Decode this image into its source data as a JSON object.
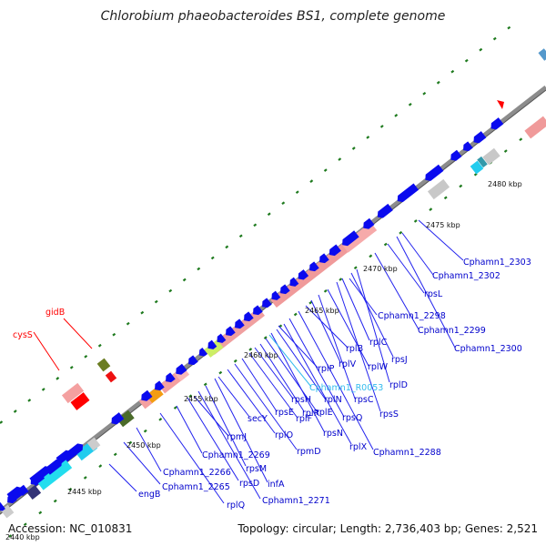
{
  "title": "Chlorobium phaeobacteroides BS1, complete genome",
  "accession": "Accession: NC_010831",
  "topology": "Topology: circular; Length: 2,736,403 bp; Genes: 2,521",
  "colors": {
    "forward": "#0000e6",
    "reverse": "#0000e6",
    "rRNA": "#f09a9a",
    "tRNA": "#1cc9e6",
    "label_blue": "#0000cc",
    "label_red": "#ff0000",
    "label_cyan": "#33bbee",
    "backbone": "#7f7f7f",
    "gc_marks": "#1a7a1a"
  },
  "ticks": [
    "2440 kbp",
    "2445 kbp",
    "2450 kbp",
    "2455 kbp",
    "2460 kbp",
    "2465 kbp",
    "2470 kbp",
    "2475 kbp",
    "2480 kbp"
  ],
  "gene_labels": {
    "cysS": "cysS",
    "gidB": "gidB",
    "engB": "engB",
    "c2265": "Cphamn1_2265",
    "rplQ": "rplQ",
    "c2266": "Cphamn1_2266",
    "rpsD": "rpsD",
    "c2271": "Cphamn1_2271",
    "c2269": "Cphamn1_2269",
    "rpsM": "rpsM",
    "infA": "infA",
    "rpmJ": "rpmJ",
    "secY": "secY",
    "rplO": "rplO",
    "rpmD": "rpmD",
    "rpsE": "rpsE",
    "rplF": "rplF",
    "rpsH": "rpsH",
    "rplR": "rplR",
    "rplE": "rplE",
    "rpsN": "rpsN",
    "rplN": "rplN",
    "rplX": "rplX",
    "rpsQ": "rpsQ",
    "c2288": "Cphamn1_2288",
    "rplP": "rplP",
    "cR0053": "Cphamn1_R0053",
    "rplB": "rplB",
    "rplV": "rplV",
    "rpsC": "rpsC",
    "rplW": "rplW",
    "rpsS": "rpsS",
    "rplC": "rplC",
    "rpsJ": "rpsJ",
    "rplD": "rplD",
    "c2298": "Cphamn1_2298",
    "c2299": "Cphamn1_2299",
    "c2300": "Cphamn1_2300",
    "rpsL": "rpsL",
    "c2302": "Cphamn1_2302",
    "c2303": "Cphamn1_2303"
  }
}
